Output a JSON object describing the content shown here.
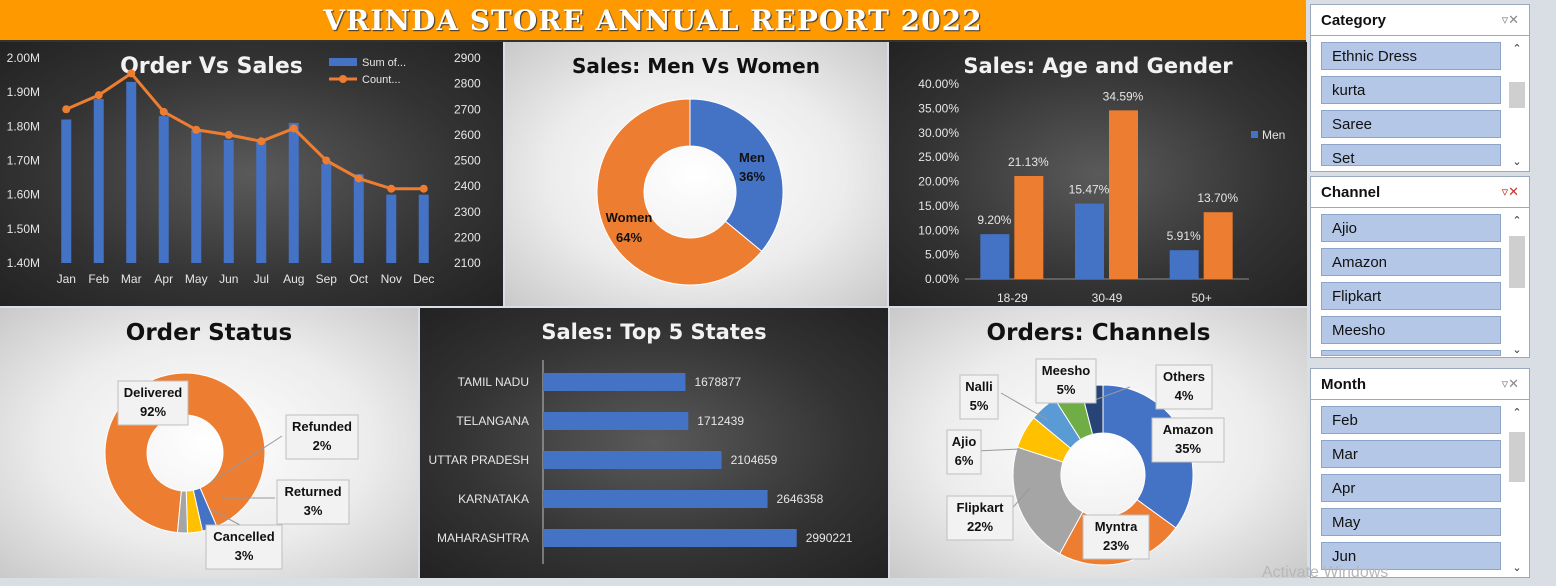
{
  "header": {
    "title": "VRINDA STORE ANNUAL REPORT 2022"
  },
  "chart_data": [
    {
      "id": "order-vs-sales",
      "type": "bar+line",
      "title": "Order Vs Sales",
      "categories": [
        "Jan",
        "Feb",
        "Mar",
        "Apr",
        "May",
        "Jun",
        "Jul",
        "Aug",
        "Sep",
        "Oct",
        "Nov",
        "Dec"
      ],
      "series": [
        {
          "name": "Sum of...",
          "type": "bar",
          "axis": "left",
          "values": [
            1.82,
            1.88,
            1.93,
            1.83,
            1.79,
            1.76,
            1.76,
            1.81,
            1.69,
            1.66,
            1.6,
            1.6
          ],
          "color": "#4472c4"
        },
        {
          "name": "Count...",
          "type": "line",
          "axis": "right",
          "values": [
            2700,
            2755,
            2840,
            2690,
            2620,
            2600,
            2575,
            2625,
            2500,
            2430,
            2390,
            2390
          ],
          "color": "#ed7d31"
        }
      ],
      "ylim_left": [
        1.4,
        2.0
      ],
      "yticks_left": [
        "1.40M",
        "1.50M",
        "1.60M",
        "1.70M",
        "1.80M",
        "1.90M",
        "2.00M"
      ],
      "ylim_right": [
        2100,
        2900
      ],
      "yticks_right": [
        "2100",
        "2200",
        "2300",
        "2400",
        "2500",
        "2600",
        "2700",
        "2800",
        "2900"
      ]
    },
    {
      "id": "men-vs-women",
      "type": "pie",
      "title": "Sales: Men Vs Women",
      "slices": [
        {
          "label": "Men",
          "value": 36,
          "display": "36%",
          "color": "#4472c4"
        },
        {
          "label": "Women",
          "value": 64,
          "display": "64%",
          "color": "#ed7d31"
        }
      ]
    },
    {
      "id": "age-gender",
      "type": "bar",
      "title": "Sales: Age and Gender",
      "categories": [
        "18-29",
        "30-49",
        "50+"
      ],
      "series": [
        {
          "name": "Men",
          "values": [
            9.2,
            15.47,
            5.91
          ],
          "labels": [
            "9.20%",
            "15.47%",
            "5.91%"
          ],
          "color": "#4472c4"
        },
        {
          "name": "",
          "values": [
            21.13,
            34.59,
            13.7
          ],
          "labels": [
            "21.13%",
            "34.59%",
            "13.70%"
          ],
          "color": "#ed7d31"
        }
      ],
      "ylim": [
        0,
        40
      ],
      "yticks": [
        "0.00%",
        "5.00%",
        "10.00%",
        "15.00%",
        "20.00%",
        "25.00%",
        "30.00%",
        "35.00%",
        "40.00%"
      ],
      "legend": "right"
    },
    {
      "id": "order-status",
      "type": "pie",
      "title": "Order Status",
      "slices": [
        {
          "label": "Delivered",
          "value": 92,
          "display": "92%",
          "color": "#ed7d31"
        },
        {
          "label": "Cancelled",
          "value": 3,
          "display": "3%",
          "color": "#4472c4"
        },
        {
          "label": "Returned",
          "value": 3,
          "display": "3%",
          "color": "#ffc000"
        },
        {
          "label": "Refunded",
          "value": 2,
          "display": "2%",
          "color": "#a5a5a5"
        }
      ]
    },
    {
      "id": "top-states",
      "type": "bar",
      "orientation": "horizontal",
      "title": "Sales: Top 5 States",
      "categories": [
        "TAMIL NADU",
        "TELANGANA",
        "UTTAR PRADESH",
        "KARNATAKA",
        "MAHARASHTRA"
      ],
      "values": [
        1678877,
        1712439,
        2104659,
        2646358,
        2990221
      ],
      "labels": [
        "1678877",
        "1712439",
        "2104659",
        "2646358",
        "2990221"
      ],
      "color": "#4472c4"
    },
    {
      "id": "channels",
      "type": "pie",
      "title": "Orders: Channels",
      "slices": [
        {
          "label": "Amazon",
          "value": 35,
          "display": "35%",
          "color": "#4472c4"
        },
        {
          "label": "Myntra",
          "value": 23,
          "display": "23%",
          "color": "#ed7d31"
        },
        {
          "label": "Flipkart",
          "value": 22,
          "display": "22%",
          "color": "#a5a5a5"
        },
        {
          "label": "Ajio",
          "value": 6,
          "display": "6%",
          "color": "#ffc000"
        },
        {
          "label": "Nalli",
          "value": 5,
          "display": "5%",
          "color": "#5b9bd5"
        },
        {
          "label": "Meesho",
          "value": 5,
          "display": "5%",
          "color": "#70ad47"
        },
        {
          "label": "Others",
          "value": 4,
          "display": "4%",
          "color": "#264478"
        }
      ]
    }
  ],
  "slicers": [
    {
      "title": "Category",
      "items": [
        "Ethnic Dress",
        "kurta",
        "Saree",
        "Set"
      ]
    },
    {
      "title": "Channel",
      "items": [
        "Ajio",
        "Amazon",
        "Flipkart",
        "Meesho"
      ]
    },
    {
      "title": "Month",
      "items": [
        "Feb",
        "Mar",
        "Apr",
        "May",
        "Jun"
      ]
    }
  ],
  "watermark": "Activate Windows"
}
